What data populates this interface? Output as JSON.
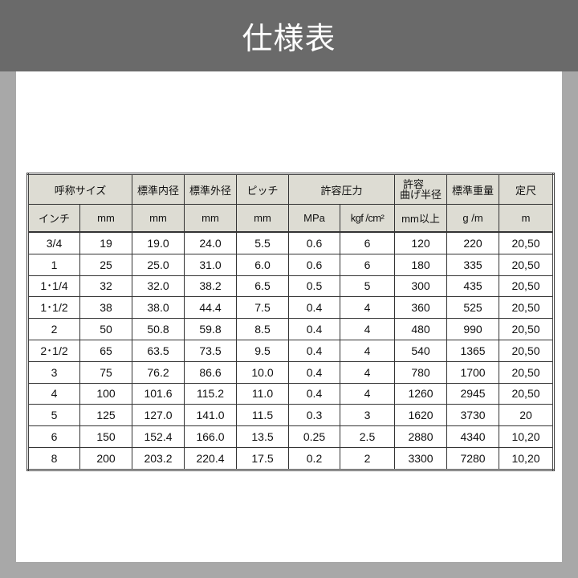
{
  "header": {
    "title": "仕様表"
  },
  "table": {
    "header1": [
      {
        "label": "呼称サイズ",
        "colspan": 2
      },
      {
        "label": "標準内径"
      },
      {
        "label": "標準外径"
      },
      {
        "label": "ピッチ"
      },
      {
        "label": "許容圧力",
        "colspan": 2
      },
      {
        "label": "許容",
        "label2": "曲げ半径"
      },
      {
        "label": "標準重量"
      },
      {
        "label": "定尺"
      }
    ],
    "header2": [
      "インチ",
      "mm",
      "mm",
      "mm",
      "mm",
      "MPa",
      "kgf /cm²",
      "mm以上",
      "g /m",
      "m"
    ],
    "rows": [
      [
        "3/4",
        "19",
        "19.0",
        "24.0",
        "5.5",
        "0.6",
        "6",
        "120",
        "220",
        "20,50"
      ],
      [
        "1",
        "25",
        "25.0",
        "31.0",
        "6.0",
        "0.6",
        "6",
        "180",
        "335",
        "20,50"
      ],
      [
        "1･1/4",
        "32",
        "32.0",
        "38.2",
        "6.5",
        "0.5",
        "5",
        "300",
        "435",
        "20,50"
      ],
      [
        "1･1/2",
        "38",
        "38.0",
        "44.4",
        "7.5",
        "0.4",
        "4",
        "360",
        "525",
        "20,50"
      ],
      [
        "2",
        "50",
        "50.8",
        "59.8",
        "8.5",
        "0.4",
        "4",
        "480",
        "990",
        "20,50"
      ],
      [
        "2･1/2",
        "65",
        "63.5",
        "73.5",
        "9.5",
        "0.4",
        "4",
        "540",
        "1365",
        "20,50"
      ],
      [
        "3",
        "75",
        "76.2",
        "86.6",
        "10.0",
        "0.4",
        "4",
        "780",
        "1700",
        "20,50"
      ],
      [
        "4",
        "100",
        "101.6",
        "115.2",
        "11.0",
        "0.4",
        "4",
        "1260",
        "2945",
        "20,50"
      ],
      [
        "5",
        "125",
        "127.0",
        "141.0",
        "11.5",
        "0.3",
        "3",
        "1620",
        "3730",
        "20"
      ],
      [
        "6",
        "150",
        "152.4",
        "166.0",
        "13.5",
        "0.25",
        "2.5",
        "2880",
        "4340",
        "10,20"
      ],
      [
        "8",
        "200",
        "203.2",
        "220.4",
        "17.5",
        "0.2",
        "2",
        "3300",
        "7280",
        "10,20"
      ]
    ]
  }
}
